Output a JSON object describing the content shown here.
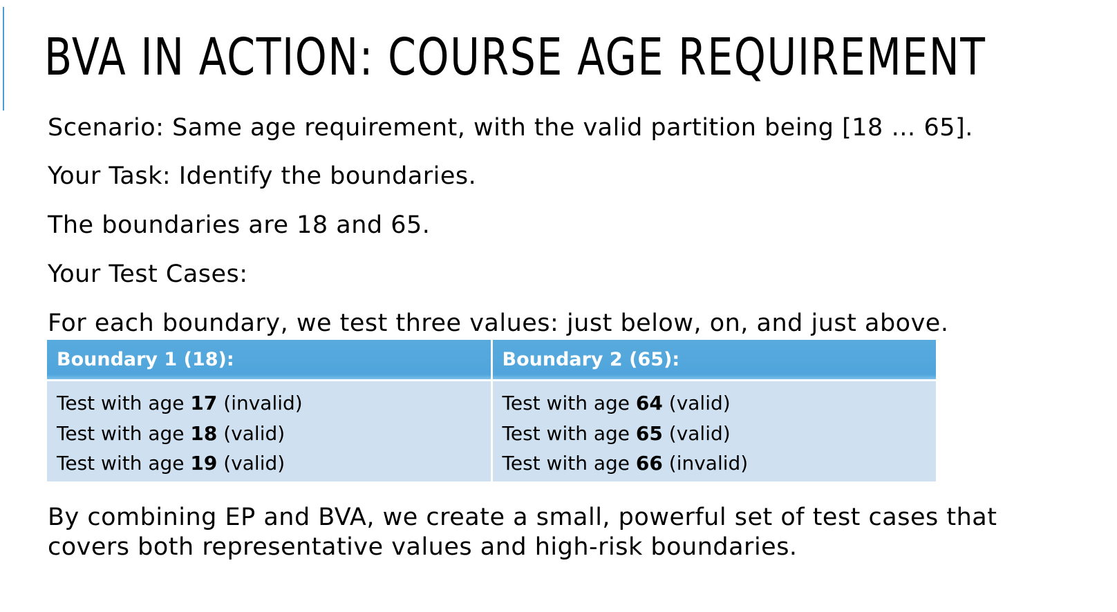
{
  "slide": {
    "title": "BVA IN ACTION: COURSE AGE REQUIREMENT",
    "accent_color": "#4a9bd4",
    "paragraphs": [
      "Scenario: Same age requirement, with the valid partition being [18 … 65].",
      "Your Task: Identify the boundaries.",
      "The boundaries are 18 and 65.",
      "Your Test Cases:",
      "For each boundary, we test three values: just below, on, and just above."
    ],
    "table": {
      "header_color": "#52a7dc",
      "cell_color": "#cfe1f1",
      "columns": [
        {
          "header": "Boundary 1 (18):",
          "cases": [
            {
              "prefix": "Test with age ",
              "age": "17",
              "result": " (invalid)"
            },
            {
              "prefix": "Test with age ",
              "age": "18",
              "result": " (valid)"
            },
            {
              "prefix": "Test with age ",
              "age": "19",
              "result": " (valid)"
            }
          ]
        },
        {
          "header": "Boundary 2 (65):",
          "cases": [
            {
              "prefix": "Test with age ",
              "age": "64",
              "result": " (valid)"
            },
            {
              "prefix": "Test with age ",
              "age": "65",
              "result": " (valid)"
            },
            {
              "prefix": "Test with age ",
              "age": "66",
              "result": " (invalid)"
            }
          ]
        }
      ]
    },
    "closing": "By combining EP and BVA, we create a small, powerful set of test cases that covers both representative values and high-risk boundaries."
  }
}
